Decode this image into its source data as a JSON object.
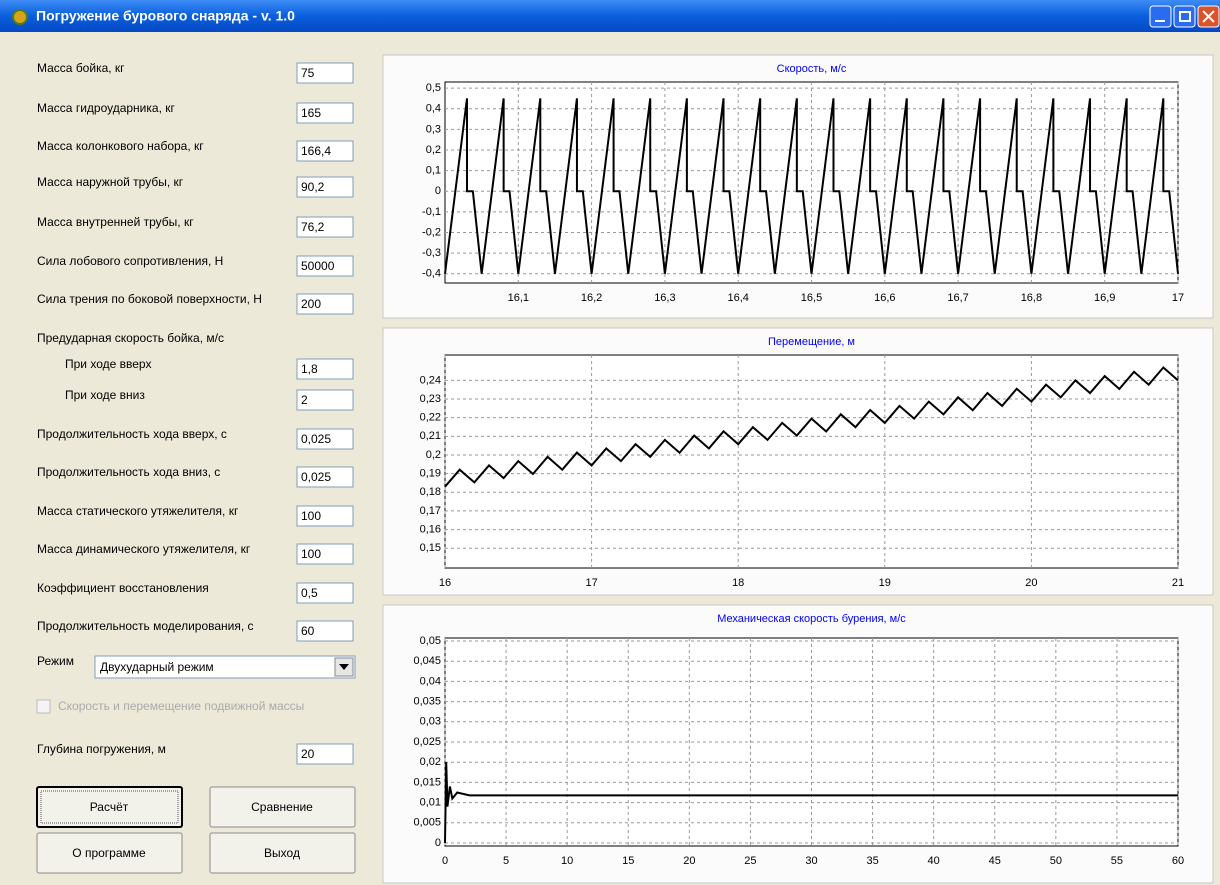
{
  "window": {
    "title": "Погружение бурового снаряда - v. 1.0"
  },
  "form": {
    "fields": [
      {
        "label": "Масса бойка, кг",
        "value": "75"
      },
      {
        "label": "Масса гидроударника, кг",
        "value": "165"
      },
      {
        "label": "Масса колонкового набора, кг",
        "value": "166,4"
      },
      {
        "label": "Масса наружной трубы, кг",
        "value": "90,2"
      },
      {
        "label": "Масса внутренней трубы, кг",
        "value": "76,2"
      },
      {
        "label": "Сила лобового сопротивления, Н",
        "value": "50000"
      },
      {
        "label": "Сила трения по боковой поверхности, Н",
        "value": "200"
      }
    ],
    "impact_speed": {
      "label": "Предударная скорость бойка, м/с",
      "fields": [
        {
          "label": "При ходе вверх",
          "value": "1,8"
        },
        {
          "label": "При ходе вниз",
          "value": "2"
        }
      ]
    },
    "fields2": [
      {
        "label": "Продолжительность хода вверх, с",
        "value": "0,025"
      },
      {
        "label": "Продолжительность хода вниз, с",
        "value": "0,025"
      },
      {
        "label": "Масса статического утяжелителя, кг",
        "value": "100"
      },
      {
        "label": "Масса динамического утяжелителя, кг",
        "value": "100"
      },
      {
        "label": "Коэффициент восстановления",
        "value": "0,5"
      },
      {
        "label": "Продолжительность моделирования, с",
        "value": "60"
      }
    ],
    "mode": {
      "label": "Режим",
      "value": "Двухударный режим"
    },
    "checkbox": {
      "label": "Скорость и перемещение подвижной массы"
    },
    "depth": {
      "label": "Глубина погружения, м",
      "value": "20"
    },
    "buttons": [
      "Расчёт",
      "Сравнение",
      "О программе",
      "Выход"
    ]
  },
  "chart_data": [
    {
      "type": "line",
      "title": "Скорость, м/с",
      "color": "#000000",
      "grid": true,
      "xlim": [
        16,
        17
      ],
      "ylim": [
        -0.43,
        0.515
      ],
      "xticks": [
        {
          "value": 16.1,
          "label": "16,1"
        },
        {
          "value": 16.2,
          "label": "16,2"
        },
        {
          "value": 16.3,
          "label": "16,3"
        },
        {
          "value": 16.4,
          "label": "16,4"
        },
        {
          "value": 16.5,
          "label": "16,5"
        },
        {
          "value": 16.6,
          "label": "16,6"
        },
        {
          "value": 16.7,
          "label": "16,7"
        },
        {
          "value": 16.8,
          "label": "16,8"
        },
        {
          "value": 16.9,
          "label": "16,9"
        },
        17
      ],
      "yticks": [
        {
          "value": 0.5,
          "label": "0,5"
        },
        {
          "value": 0.4,
          "label": "0,4"
        },
        {
          "value": 0.3,
          "label": "0,3"
        },
        {
          "value": 0.2,
          "label": "0,2"
        },
        {
          "value": 0.1,
          "label": "0,1"
        },
        0,
        {
          "value": -0.1,
          "label": "-0,1"
        },
        {
          "value": -0.2,
          "label": "-0,2"
        },
        {
          "value": -0.3,
          "label": "-0,3"
        },
        {
          "value": -0.4,
          "label": "-0,4"
        }
      ],
      "x": [
        16,
        16.03,
        16.03,
        16.038,
        16.05,
        16.08,
        16.08,
        16.088,
        16.1,
        16.13,
        16.13,
        16.138,
        16.15,
        16.18,
        16.18,
        16.188,
        16.2,
        16.23,
        16.23,
        16.238,
        16.25,
        16.28,
        16.28,
        16.288,
        16.3,
        16.33,
        16.33,
        16.338,
        16.35,
        16.38,
        16.38,
        16.388,
        16.4,
        16.43,
        16.43,
        16.438,
        16.45,
        16.48,
        16.48,
        16.488,
        16.5,
        16.53,
        16.53,
        16.538,
        16.55,
        16.58,
        16.58,
        16.588,
        16.6,
        16.63,
        16.63,
        16.638,
        16.65,
        16.68,
        16.68,
        16.688,
        16.7,
        16.73,
        16.73,
        16.738,
        16.75,
        16.78,
        16.78,
        16.788,
        16.8,
        16.83,
        16.83,
        16.838,
        16.85,
        16.88,
        16.88,
        16.888,
        16.9,
        16.93,
        16.93,
        16.938,
        16.95,
        16.98,
        16.98,
        16.988,
        17
      ],
      "values": [
        -0.4,
        0.45,
        0,
        0,
        -0.4,
        0.45,
        0,
        0,
        -0.4,
        0.45,
        0,
        0,
        -0.4,
        0.45,
        0,
        0,
        -0.4,
        0.45,
        0,
        0,
        -0.4,
        0.45,
        0,
        0,
        -0.4,
        0.45,
        0,
        0,
        -0.4,
        0.45,
        0,
        0,
        -0.4,
        0.45,
        0,
        0,
        -0.4,
        0.45,
        0,
        0,
        -0.4,
        0.45,
        0,
        0,
        -0.4,
        0.45,
        0,
        0,
        -0.4,
        0.45,
        0,
        0,
        -0.4,
        0.45,
        0,
        0,
        -0.4,
        0.45,
        0,
        0,
        -0.4,
        0.45,
        0,
        0,
        -0.4,
        0.45,
        0,
        0,
        -0.4,
        0.45,
        0,
        0,
        -0.4,
        0.45,
        0,
        0,
        -0.4,
        0.45,
        0,
        0,
        -0.4
      ]
    },
    {
      "type": "line",
      "title": "Перемещение, м",
      "color": "#000000",
      "grid": true,
      "xlim": [
        16,
        21
      ],
      "ylim": [
        0.141,
        0.252
      ],
      "xticks": [
        16,
        17,
        18,
        19,
        20,
        21
      ],
      "yticks": [
        {
          "value": 0.24,
          "label": "0,24"
        },
        {
          "value": 0.23,
          "label": "0,23"
        },
        {
          "value": 0.22,
          "label": "0,22"
        },
        {
          "value": 0.21,
          "label": "0,21"
        },
        {
          "value": 0.2,
          "label": "0,2"
        },
        {
          "value": 0.19,
          "label": "0,19"
        },
        {
          "value": 0.18,
          "label": "0,18"
        },
        {
          "value": 0.17,
          "label": "0,17"
        },
        {
          "value": 0.16,
          "label": "0,16"
        },
        {
          "value": 0.15,
          "label": "0,15"
        }
      ],
      "x": [
        16,
        16.1,
        16.2,
        16.3,
        16.4,
        16.5,
        16.6,
        16.7,
        16.8,
        16.9,
        17,
        17.1,
        17.2,
        17.3,
        17.4,
        17.5,
        17.6,
        17.7,
        17.8,
        17.9,
        18,
        18.1,
        18.2,
        18.3,
        18.4,
        18.5,
        18.6,
        18.7,
        18.8,
        18.9,
        19,
        19.1,
        19.2,
        19.3,
        19.4,
        19.5,
        19.6,
        19.7,
        19.8,
        19.9,
        20,
        20.1,
        20.2,
        20.3,
        20.4,
        20.5,
        20.6,
        20.7,
        20.8,
        20.9,
        21
      ],
      "values": [
        0.183,
        0.1921,
        0.1853,
        0.1944,
        0.1876,
        0.1967,
        0.1898,
        0.199,
        0.1921,
        0.2013,
        0.1944,
        0.2035,
        0.1967,
        0.2058,
        0.199,
        0.2081,
        0.2012,
        0.2104,
        0.2035,
        0.2127,
        0.2058,
        0.2149,
        0.2081,
        0.2172,
        0.2104,
        0.2195,
        0.2126,
        0.2218,
        0.2149,
        0.2241,
        0.2172,
        0.2263,
        0.2195,
        0.2286,
        0.2218,
        0.2309,
        0.224,
        0.2332,
        0.2263,
        0.2355,
        0.2286,
        0.2377,
        0.2309,
        0.24,
        0.2332,
        0.2423,
        0.2354,
        0.2446,
        0.2377,
        0.2469,
        0.24
      ]
    },
    {
      "type": "line",
      "title": "Механическая скорость бурения, м/с",
      "color": "#000000",
      "grid": true,
      "xlim": [
        0,
        60
      ],
      "ylim": [
        0,
        0.05
      ],
      "xticks": [
        0,
        5,
        10,
        15,
        20,
        25,
        30,
        35,
        40,
        45,
        50,
        55,
        60
      ],
      "yticks": [
        {
          "value": 0.05,
          "label": "0,05"
        },
        {
          "value": 0.045,
          "label": "0,045"
        },
        {
          "value": 0.04,
          "label": "0,04"
        },
        {
          "value": 0.035,
          "label": "0,035"
        },
        {
          "value": 0.03,
          "label": "0,03"
        },
        {
          "value": 0.025,
          "label": "0,025"
        },
        {
          "value": 0.02,
          "label": "0,02"
        },
        {
          "value": 0.015,
          "label": "0,015"
        },
        {
          "value": 0.01,
          "label": "0,01"
        },
        {
          "value": 0.005,
          "label": "0,005"
        },
        0
      ],
      "x": [
        0,
        0.1,
        0.2,
        0.4,
        0.6,
        1,
        2,
        3,
        60
      ],
      "values": [
        0,
        0.02,
        0.009,
        0.014,
        0.011,
        0.0125,
        0.0118,
        0.0118,
        0.0118
      ]
    }
  ]
}
